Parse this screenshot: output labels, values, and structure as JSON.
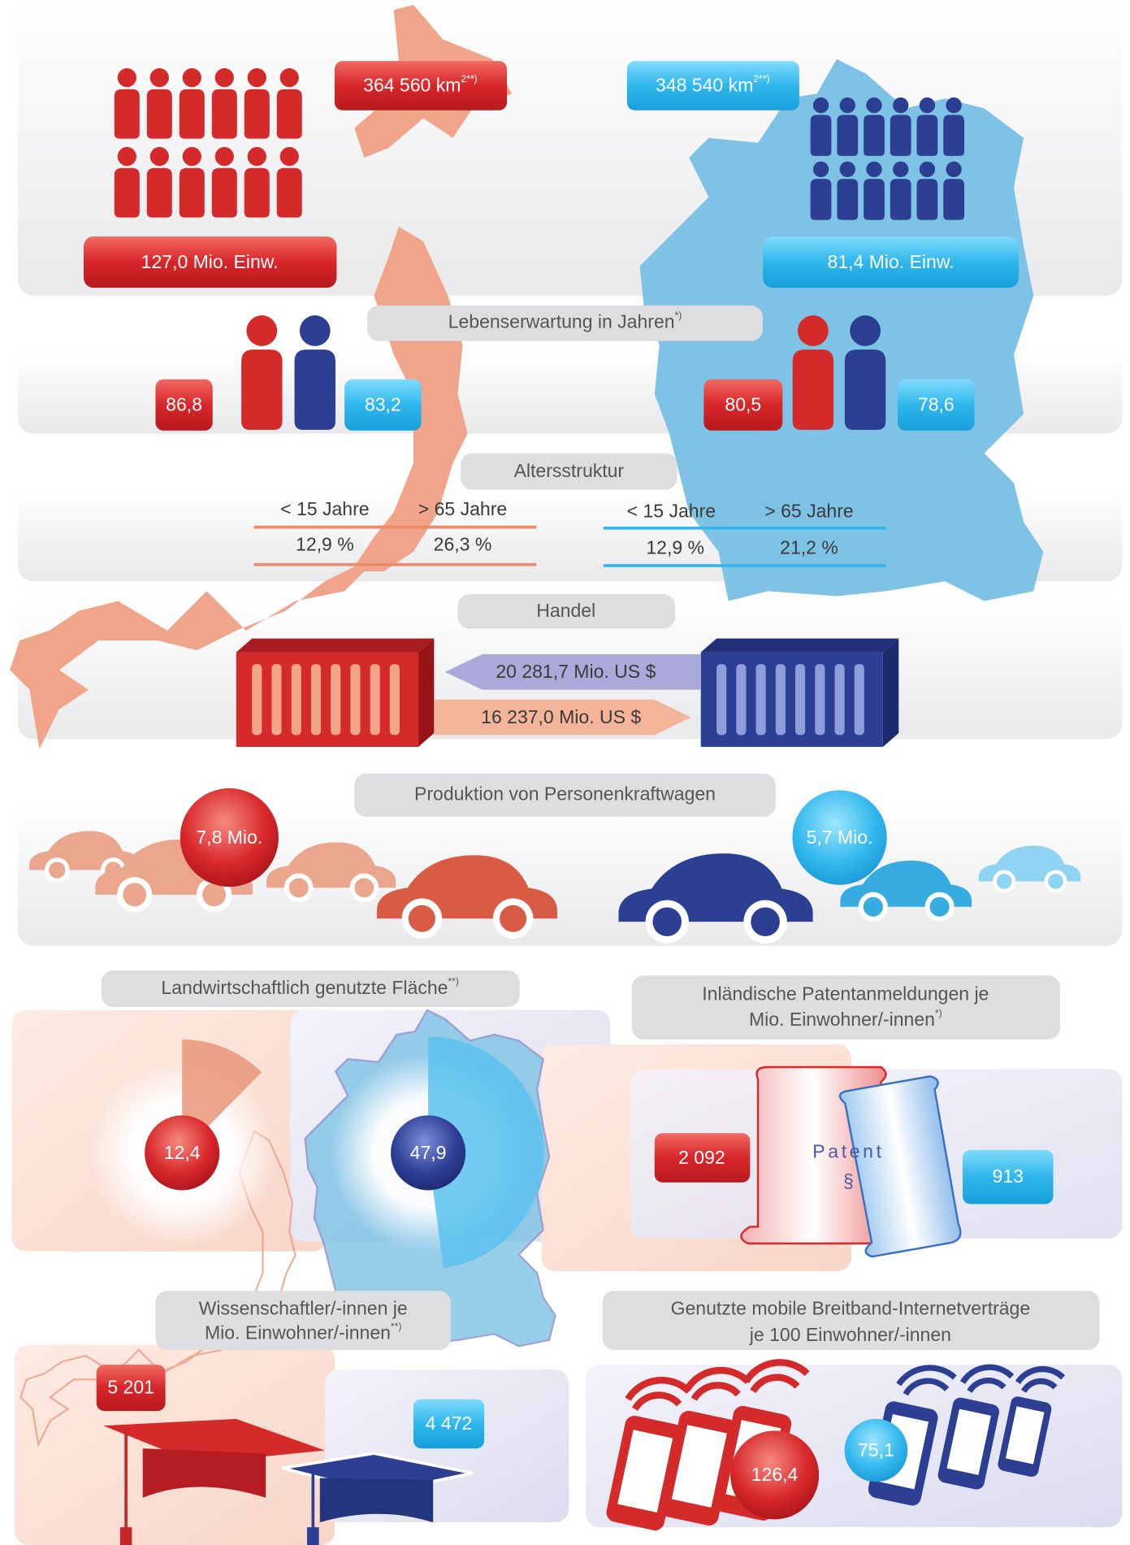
{
  "area": {
    "japan": {
      "text": "364 560 km",
      "sup": "2**)"
    },
    "germany": {
      "text": "348 540 km",
      "sup": "2**)"
    }
  },
  "population": {
    "japan": "127,0 Mio. Einw.",
    "germany": "81,4 Mio. Einw."
  },
  "life_expectancy": {
    "title": {
      "text": "Lebenserwartung in Jahren",
      "sup": "*)"
    },
    "japan": {
      "women": "86,8",
      "men": "83,2"
    },
    "germany": {
      "women": "80,5",
      "men": "78,6"
    }
  },
  "age_structure": {
    "title": "Altersstruktur",
    "japan": {
      "under_15_label": "< 15 Jahre",
      "over_65_label": "> 65 Jahre",
      "under_15": "12,9 %",
      "over_65": "26,3 %"
    },
    "germany": {
      "under_15_label": "< 15 Jahre",
      "over_65_label": "> 65 Jahre",
      "under_15": "12,9 %",
      "over_65": "21,2 %"
    }
  },
  "trade": {
    "title": "Handel",
    "to_japan": "20 281,7 Mio. US $",
    "to_germany": "16 237,0 Mio. US $"
  },
  "car_production": {
    "title": "Produktion von Personenkraftwagen",
    "japan": "7,8 Mio.",
    "germany": "5,7 Mio."
  },
  "agricultural_area": {
    "title": {
      "text": "Landwirtschaftlich genutzte Fläche",
      "sup": "**)"
    },
    "japan": {
      "value": 12.4,
      "label": "12,4"
    },
    "germany": {
      "value": 47.9,
      "label": "47,9"
    }
  },
  "patents": {
    "title_lines": [
      "Inländische Patentanmeldungen je",
      "Mio. Einwohner/-innen"
    ],
    "title_sup": "*)",
    "japan": "2 092",
    "germany": "913",
    "image_text": "Patent",
    "image_symbol": "§"
  },
  "scientists": {
    "title_lines": [
      "Wissenschaftler/-innen je",
      "Mio. Einwohner/-innen"
    ],
    "title_sup": "**)",
    "japan": "5 201",
    "germany": "4 472"
  },
  "mobile_broadband": {
    "title_lines": [
      "Genutzte mobile Breitband-Internetverträge",
      "je 100 Einwohner/-innen"
    ],
    "japan": "126,4",
    "germany": "75,1"
  }
}
